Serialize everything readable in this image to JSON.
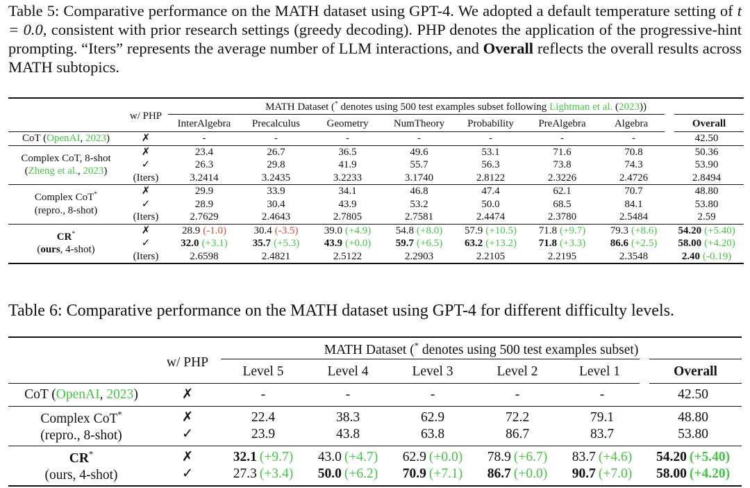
{
  "style": {
    "cite_color": "#45c445",
    "gain_color": "#45c445",
    "loss_color": "#e04a3a"
  },
  "table5": {
    "caption": [
      {
        "t": "Table 5: Comparative performance on the MATH dataset using GPT-4. We adopted a default temperature setting of "
      },
      {
        "t": "t = 0.0",
        "i": true
      },
      {
        "t": ", consistent with prior research settings (greedy decoding). PHP denotes the application of the progressive-hint prompting. “Iters” represents the average number of LLM interactions, and "
      },
      {
        "t": "Overall",
        "b": true
      },
      {
        "t": " reflects the overall results across MATH subtopics."
      }
    ],
    "php_header": "w/ PHP",
    "group_header": [
      {
        "t": "MATH Dataset ("
      },
      {
        "t": "*",
        "sup": true
      },
      {
        "t": " denotes using 500 test examples subset following "
      },
      {
        "t": "Lightman et al.",
        "cite": true
      },
      {
        "t": " ("
      },
      {
        "t": "2023",
        "cite": true
      },
      {
        "t": "))"
      }
    ],
    "columns": [
      "InterAlgebra",
      "Precalculus",
      "Geometry",
      "NumTheory",
      "Probability",
      "PreAlgebra",
      "Algebra",
      "Overall"
    ],
    "groups": [
      {
        "label": [
          [
            {
              "t": "CoT ("
            },
            {
              "t": "OpenAI",
              "cite": true
            },
            {
              "t": ", "
            },
            {
              "t": "2023",
              "cite": true
            },
            {
              "t": ")"
            }
          ]
        ],
        "rows": [
          [
            "✗",
            "-",
            "-",
            "-",
            "-",
            "-",
            "-",
            "-",
            "42.50"
          ]
        ]
      },
      {
        "label": [
          [
            {
              "t": "Complex CoT, 8-shot"
            }
          ],
          [
            {
              "t": "("
            },
            {
              "t": "Zheng et al.",
              "cite": true
            },
            {
              "t": ", "
            },
            {
              "t": "2023",
              "cite": true
            },
            {
              "t": ")"
            }
          ]
        ],
        "rows": [
          [
            "✗",
            "23.4",
            "26.7",
            "36.5",
            "49.6",
            "53.1",
            "71.6",
            "70.8",
            "50.36"
          ],
          [
            "✓",
            "26.3",
            "29.8",
            "41.9",
            "55.7",
            "56.3",
            "73.8",
            "74.3",
            "53.90"
          ],
          [
            "(Iters)",
            "3.2414",
            "3.2435",
            "3.2233",
            "3.1740",
            "2.8122",
            "2.3226",
            "2.4726",
            "2.8494"
          ]
        ]
      },
      {
        "label": [
          [
            {
              "t": "Complex CoT"
            },
            {
              "t": "*",
              "sup": true
            }
          ],
          [
            {
              "t": "(repro., 8-shot)"
            }
          ]
        ],
        "rows": [
          [
            "✗",
            "29.9",
            "33.9",
            "34.1",
            "46.8",
            "47.4",
            "62.1",
            "70.7",
            "48.80"
          ],
          [
            "✓",
            "28.9",
            "30.4",
            "43.9",
            "53.2",
            "50.0",
            "68.5",
            "84.1",
            "53.80"
          ],
          [
            "(Iters)",
            "2.7629",
            "2.4643",
            "2.7805",
            "2.7581",
            "2.4474",
            "2.3780",
            "2.5484",
            "2.59"
          ]
        ]
      },
      {
        "label": [
          [
            {
              "t": "CR",
              "b": true
            },
            {
              "t": "*",
              "sup": true
            }
          ],
          [
            {
              "t": "("
            },
            {
              "t": "ours",
              "b": true
            },
            {
              "t": ", 4-shot)"
            }
          ]
        ],
        "rows": [
          [
            "✗",
            {
              "v": "28.9",
              "d": "(-1.0)",
              "red": true
            },
            {
              "v": "30.4",
              "d": "(-3.5)",
              "red": true
            },
            {
              "v": "39.0",
              "d": "(+4.9)"
            },
            {
              "v": "54.8",
              "d": "(+8.0)"
            },
            {
              "v": "57.9",
              "d": "(+10.5)"
            },
            {
              "v": "71.8",
              "d": "(+9.7)"
            },
            {
              "v": "79.3",
              "d": "(+8.6)"
            },
            {
              "v": "54.20",
              "d": "(+5.40)",
              "b": true
            }
          ],
          [
            "✓",
            {
              "v": "32.0",
              "d": "(+3.1)",
              "b": true
            },
            {
              "v": "35.7",
              "d": "(+5.3)",
              "b": true
            },
            {
              "v": "43.9",
              "d": "(+0.0)",
              "b": true
            },
            {
              "v": "59.7",
              "d": "(+6.5)",
              "b": true
            },
            {
              "v": "63.2",
              "d": "(+13.2)",
              "b": true
            },
            {
              "v": "71.8",
              "d": "(+3.3)",
              "b": true
            },
            {
              "v": "86.6",
              "d": "(+2.5)",
              "b": true
            },
            {
              "v": "58.00",
              "d": "(+4.20)",
              "b": true
            }
          ],
          [
            "(Iters)",
            "2.6598",
            "2.4821",
            "2.5122",
            "2.2903",
            "2.2105",
            "2.2195",
            "2.3548",
            {
              "v": "2.40",
              "d": "(-0.19)",
              "b": true
            }
          ]
        ]
      }
    ]
  },
  "table6": {
    "caption": [
      {
        "t": "Table 6: Comparative performance on the MATH dataset using GPT-4 for different difficulty levels."
      }
    ],
    "php_header": "w/ PHP",
    "group_header": [
      {
        "t": "MATH Dataset ("
      },
      {
        "t": "*",
        "sup": true
      },
      {
        "t": " denotes using 500 test examples subset)"
      }
    ],
    "columns": [
      "Level 5",
      "Level 4",
      "Level 3",
      "Level 2",
      "Level 1",
      "Overall"
    ],
    "groups": [
      {
        "label": [
          [
            {
              "t": "CoT ("
            },
            {
              "t": "OpenAI",
              "cite": true
            },
            {
              "t": ", "
            },
            {
              "t": "2023",
              "cite": true
            },
            {
              "t": ")"
            }
          ]
        ],
        "rows": [
          [
            "✗",
            "-",
            "-",
            "-",
            "-",
            "-",
            "42.50"
          ]
        ]
      },
      {
        "label": [
          [
            {
              "t": "Complex CoT"
            },
            {
              "t": "*",
              "sup": true
            }
          ],
          [
            {
              "t": "(repro., 8-shot)"
            }
          ]
        ],
        "rows": [
          [
            "✗",
            "22.4",
            "38.3",
            "62.9",
            "72.2",
            "79.1",
            "48.80"
          ],
          [
            "✓",
            "23.9",
            "43.8",
            "63.8",
            "86.7",
            "83.7",
            "53.80"
          ]
        ]
      },
      {
        "label": [
          [
            {
              "t": "CR",
              "b": true
            },
            {
              "t": "*",
              "sup": true
            }
          ],
          [
            {
              "t": "(ours, 4-shot)"
            }
          ]
        ],
        "rows": [
          [
            "✗",
            {
              "v": "32.1",
              "d": "(+9.7)",
              "b": true
            },
            {
              "v": "43.0",
              "d": "(+4.7)"
            },
            {
              "v": "62.9",
              "d": "(+0.0)"
            },
            {
              "v": "78.9",
              "d": "(+6.7)"
            },
            {
              "v": "83.7",
              "d": "(+4.6)"
            },
            {
              "v": "54.20",
              "d": "(+5.40)",
              "b": true,
              "db": true
            }
          ],
          [
            "✓",
            {
              "v": "27.3",
              "d": "(+3.4)"
            },
            {
              "v": "50.0",
              "d": "(+6.2)",
              "b": true
            },
            {
              "v": "70.9",
              "d": "(+7.1)",
              "b": true
            },
            {
              "v": "86.7",
              "d": "(+0.0)",
              "b": true
            },
            {
              "v": "90.7",
              "d": "(+7.0)",
              "b": true
            },
            {
              "v": "58.00",
              "d": "(+4.20)",
              "b": true,
              "db": true
            }
          ]
        ]
      }
    ]
  }
}
